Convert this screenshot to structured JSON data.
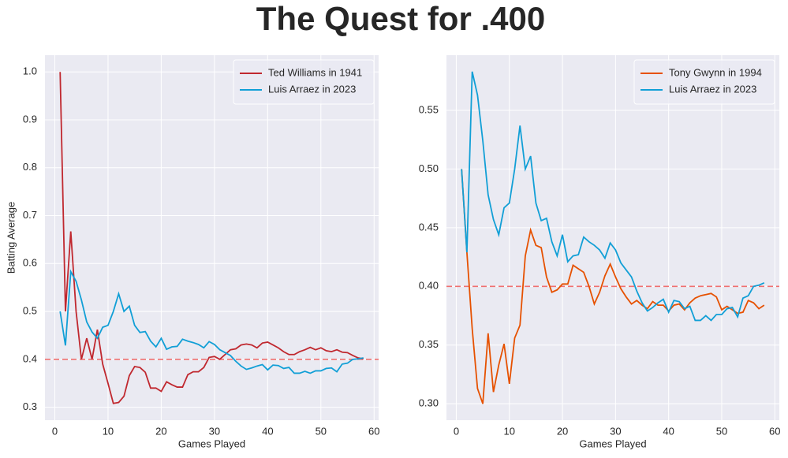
{
  "title": "The Quest for .400",
  "chart_data": [
    {
      "type": "line",
      "xlabel": "Games Played",
      "ylabel": "Batting Average",
      "x": [
        1,
        2,
        3,
        4,
        5,
        6,
        7,
        8,
        9,
        10,
        11,
        12,
        13,
        14,
        15,
        16,
        17,
        18,
        19,
        20,
        21,
        22,
        23,
        24,
        25,
        26,
        27,
        28,
        29,
        30,
        31,
        32,
        33,
        34,
        35,
        36,
        37,
        38,
        39,
        40,
        41,
        42,
        43,
        44,
        45,
        46,
        47,
        48,
        49,
        50,
        51,
        52,
        53,
        54,
        55,
        56,
        57,
        58
      ],
      "series": [
        {
          "name": "Ted Williams in 1941",
          "color": "#c0282f",
          "values": [
            1.0,
            0.5,
            0.667,
            0.5,
            0.4,
            0.444,
            0.4,
            0.462,
            0.39,
            0.35,
            0.308,
            0.31,
            0.323,
            0.366,
            0.385,
            0.383,
            0.373,
            0.34,
            0.34,
            0.333,
            0.353,
            0.347,
            0.342,
            0.342,
            0.368,
            0.374,
            0.374,
            0.383,
            0.404,
            0.406,
            0.4,
            0.41,
            0.42,
            0.422,
            0.43,
            0.432,
            0.43,
            0.424,
            0.434,
            0.436,
            0.43,
            0.424,
            0.416,
            0.41,
            0.41,
            0.416,
            0.42,
            0.425,
            0.42,
            0.424,
            0.418,
            0.416,
            0.42,
            0.415,
            0.414,
            0.408,
            0.403,
            0.401
          ]
        },
        {
          "name": "Luis Arraez in 2023",
          "color": "#119fd6",
          "values": [
            0.5,
            0.429,
            0.583,
            0.563,
            0.524,
            0.478,
            0.457,
            0.444,
            0.467,
            0.471,
            0.5,
            0.537,
            0.5,
            0.511,
            0.471,
            0.456,
            0.458,
            0.438,
            0.426,
            0.444,
            0.421,
            0.426,
            0.427,
            0.442,
            0.438,
            0.435,
            0.431,
            0.424,
            0.437,
            0.431,
            0.42,
            0.414,
            0.408,
            0.396,
            0.386,
            0.379,
            0.382,
            0.386,
            0.389,
            0.378,
            0.388,
            0.387,
            0.381,
            0.383,
            0.371,
            0.371,
            0.375,
            0.371,
            0.376,
            0.376,
            0.381,
            0.382,
            0.374,
            0.39,
            0.392,
            0.4,
            0.401,
            0.403
          ]
        }
      ],
      "reference_line": 0.4,
      "reference_color": "#f07070",
      "xlim": [
        -1.85,
        60.85
      ],
      "xticks": [
        0,
        10,
        20,
        30,
        40,
        50,
        60
      ],
      "ylim": [
        0.273,
        1.035
      ],
      "yticks": [
        0.3,
        0.4,
        0.5,
        0.6,
        0.7,
        0.8,
        0.9,
        {
          "value": 1.0,
          "label": "1.0"
        }
      ],
      "grid": true,
      "legend": "upper right"
    },
    {
      "type": "line",
      "xlabel": "Games Played",
      "x": [
        1,
        2,
        3,
        4,
        5,
        6,
        7,
        8,
        9,
        10,
        11,
        12,
        13,
        14,
        15,
        16,
        17,
        18,
        19,
        20,
        21,
        22,
        23,
        24,
        25,
        26,
        27,
        28,
        29,
        30,
        31,
        32,
        33,
        34,
        35,
        36,
        37,
        38,
        39,
        40,
        41,
        42,
        43,
        44,
        45,
        46,
        47,
        48,
        49,
        50,
        51,
        52,
        53,
        54,
        55,
        56,
        57,
        58
      ],
      "series": [
        {
          "name": "Tony Gwynn in 1994",
          "color": "#e65100",
          "values": [
            0.5,
            0.429,
            0.364,
            0.313,
            0.3,
            0.36,
            0.31,
            0.333,
            0.351,
            0.317,
            0.356,
            0.367,
            0.426,
            0.448,
            0.435,
            0.433,
            0.408,
            0.395,
            0.397,
            0.402,
            0.402,
            0.418,
            0.415,
            0.412,
            0.4,
            0.385,
            0.395,
            0.409,
            0.419,
            0.408,
            0.398,
            0.391,
            0.385,
            0.388,
            0.384,
            0.381,
            0.387,
            0.384,
            0.384,
            0.379,
            0.384,
            0.385,
            0.38,
            0.386,
            0.39,
            0.392,
            0.393,
            0.394,
            0.391,
            0.38,
            0.383,
            0.38,
            0.377,
            0.378,
            0.388,
            0.386,
            0.381,
            0.384
          ]
        },
        {
          "name": "Luis Arraez in 2023",
          "color": "#119fd6",
          "values": [
            0.5,
            0.429,
            0.583,
            0.563,
            0.524,
            0.478,
            0.457,
            0.444,
            0.467,
            0.471,
            0.5,
            0.537,
            0.5,
            0.511,
            0.471,
            0.456,
            0.458,
            0.438,
            0.426,
            0.444,
            0.421,
            0.426,
            0.427,
            0.442,
            0.438,
            0.435,
            0.431,
            0.424,
            0.437,
            0.431,
            0.42,
            0.414,
            0.408,
            0.396,
            0.386,
            0.379,
            0.382,
            0.386,
            0.389,
            0.378,
            0.388,
            0.387,
            0.381,
            0.383,
            0.371,
            0.371,
            0.375,
            0.371,
            0.376,
            0.376,
            0.381,
            0.382,
            0.374,
            0.39,
            0.392,
            0.4,
            0.401,
            0.403
          ]
        }
      ],
      "reference_line": 0.4,
      "reference_color": "#f07070",
      "xlim": [
        -1.85,
        60.85
      ],
      "xticks": [
        0,
        10,
        20,
        30,
        40,
        50,
        60
      ],
      "ylim": [
        0.286,
        0.597
      ],
      "yticks": [
        {
          "value": 0.3,
          "label": "0.30"
        },
        0.35,
        {
          "value": 0.4,
          "label": "0.40"
        },
        0.45,
        {
          "value": 0.5,
          "label": "0.50"
        },
        0.55
      ],
      "grid": true,
      "legend": "upper right"
    }
  ]
}
